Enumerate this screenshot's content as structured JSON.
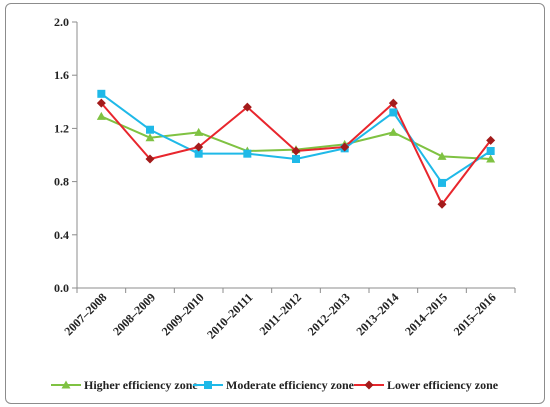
{
  "chart_data": {
    "type": "line",
    "categories": [
      "2007–2008",
      "2008–2009",
      "2009–2010",
      "2010–20111",
      "2011–2012",
      "2012–2013",
      "2013–2014",
      "2014–2015",
      "2015–2016"
    ],
    "ylim": [
      0.0,
      2.0
    ],
    "yticks": [
      "0.0",
      "0.4",
      "0.8",
      "1.2",
      "1.6",
      "2.0"
    ],
    "grid": false,
    "legend_position": "bottom",
    "series": [
      {
        "name": "Higher efficiency zone",
        "color": "#7fc242",
        "marker": "triangle",
        "values": [
          1.29,
          1.13,
          1.17,
          1.03,
          1.04,
          1.08,
          1.17,
          0.99,
          0.97
        ]
      },
      {
        "name": "Moderate efficiency zone",
        "color": "#1fb9e8",
        "marker": "square",
        "values": [
          1.46,
          1.19,
          1.01,
          1.01,
          0.97,
          1.05,
          1.32,
          0.79,
          1.03
        ]
      },
      {
        "name": "Lower efficiency zone",
        "color": "#e8262d",
        "marker": "diamond",
        "values": [
          1.39,
          0.97,
          1.06,
          1.36,
          1.03,
          1.06,
          1.39,
          0.63,
          1.11
        ]
      }
    ],
    "marker_colors": {
      "triangle": "#7fc242",
      "square": "#1fb9e8",
      "diamond": "#a31b1b"
    }
  }
}
